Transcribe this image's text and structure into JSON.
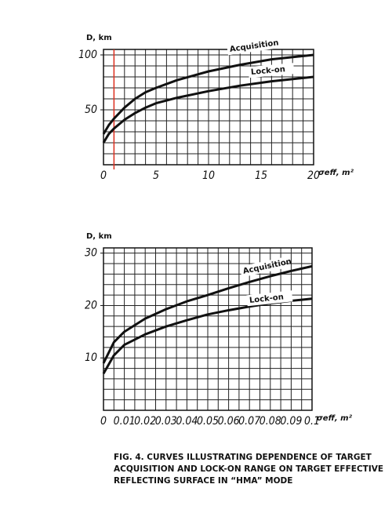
{
  "chart_data": [
    {
      "type": "line",
      "y_label": "D, km",
      "x_label": "σeff, m²",
      "x": [
        0,
        0.5,
        1,
        2,
        3,
        4,
        5,
        7,
        10,
        13,
        16,
        20
      ],
      "series": [
        {
          "name": "Acquisition",
          "color": "#111111",
          "values": [
            28,
            36,
            42,
            52,
            60,
            66,
            70,
            77,
            85,
            91,
            96,
            100
          ]
        },
        {
          "name": "Lock-on",
          "color": "#111111",
          "values": [
            20,
            28,
            33,
            41,
            47,
            52,
            56,
            61,
            67,
            72,
            76,
            80
          ]
        }
      ],
      "xlim": [
        0,
        20
      ],
      "ylim": [
        0,
        105
      ],
      "xticks": [
        0,
        5,
        10,
        15,
        20
      ],
      "yticks": [
        50,
        100
      ],
      "grid": true,
      "x_grid_step": 1,
      "y_grid_step": 10,
      "marker_x": 1,
      "marker_color": "#e03020"
    },
    {
      "type": "line",
      "y_label": "D, km",
      "x_label": "σeff, m²",
      "x": [
        0,
        0.005,
        0.01,
        0.02,
        0.03,
        0.04,
        0.05,
        0.06,
        0.07,
        0.08,
        0.09,
        0.1
      ],
      "series": [
        {
          "name": "Acquisition",
          "color": "#111111",
          "values": [
            9,
            13,
            15,
            17.5,
            19.3,
            20.8,
            22,
            23.3,
            24.5,
            25.6,
            26.6,
            27.5
          ]
        },
        {
          "name": "Lock-on",
          "color": "#111111",
          "values": [
            7,
            10.5,
            12.5,
            14.5,
            16,
            17.2,
            18.3,
            19.1,
            19.8,
            20.4,
            20.9,
            21.3
          ]
        }
      ],
      "xlim": [
        0,
        0.1
      ],
      "ylim": [
        0,
        31
      ],
      "xticks": [
        0,
        0.01,
        0.02,
        0.03,
        0.04,
        0.05,
        0.06,
        0.07,
        0.08,
        0.09,
        0.1
      ],
      "yticks": [
        10,
        20,
        30
      ],
      "grid": true,
      "x_grid_step": 0.005,
      "y_grid_step": 2
    }
  ],
  "caption": [
    "FIG. 4. CURVES ILLUSTRATING DEPENDENCE OF TARGET",
    "ACQUISITION AND LOCK-ON RANGE ON TARGET EFFECTIVE",
    "REFLECTING SURFACE IN “HMA” MODE"
  ]
}
